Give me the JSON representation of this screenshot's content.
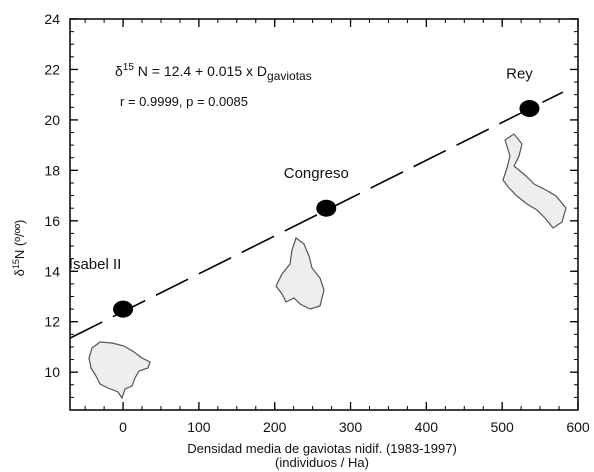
{
  "chart_data": {
    "type": "scatter",
    "xlabel_line1": "Densidad media de gaviotas nidif. (1983-1997)",
    "xlabel_line2": "(individuos / Ha)",
    "ylabel_delta": "δ",
    "ylabel_sup": "15",
    "ylabel_rest": "N (º/ºº)",
    "xlim": [
      -70,
      600
    ],
    "ylim": [
      8.5,
      24
    ],
    "xticks": [
      0,
      100,
      200,
      300,
      400,
      500,
      600
    ],
    "yticks": [
      10,
      12,
      14,
      16,
      18,
      20,
      22,
      24
    ],
    "points": [
      {
        "label": "Isabel II",
        "x": 0,
        "y": 12.5
      },
      {
        "label": "Congreso",
        "x": 268,
        "y": 16.5
      },
      {
        "label": "Rey",
        "x": 536,
        "y": 20.45
      }
    ],
    "regression": {
      "intercept": 12.4,
      "slope": 0.015,
      "x_start": -70,
      "x_end": 580
    },
    "equation": {
      "prefix_delta": "δ",
      "prefix_sup": "15",
      "body": " N = 12.4 + 0.015 x D",
      "sub": "gaviotas"
    },
    "stats": "r = 0.9999, p = 0.0085",
    "colors": {
      "points": "#000000",
      "line": "#000000",
      "shape_fill": "#eeeeee",
      "shape_stroke": "#555555"
    }
  }
}
